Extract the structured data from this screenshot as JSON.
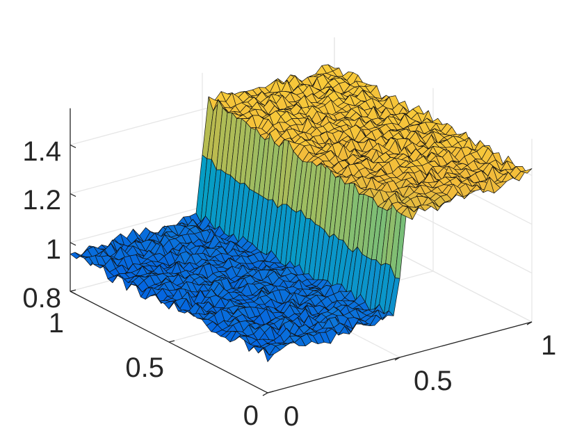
{
  "chart_data": {
    "type": "surface",
    "title": "",
    "xlabel": "",
    "ylabel": "",
    "zlabel": "",
    "xlim": [
      0,
      1
    ],
    "ylim": [
      0,
      1
    ],
    "zlim": [
      0.8,
      1.55
    ],
    "grid": true,
    "colormap": "parula",
    "x_ticks": [
      "0",
      "0.5",
      "1"
    ],
    "y_ticks": [
      "0",
      "0.5",
      "1"
    ],
    "z_ticks": [
      "0.8",
      "1",
      "1.2",
      "1.4"
    ],
    "x_tick_values": [
      0,
      0.5,
      1
    ],
    "y_tick_values": [
      0,
      0.5,
      1
    ],
    "z_tick_values": [
      0.8,
      1,
      1.2,
      1.4
    ],
    "surface": {
      "step_location_x": 0.5,
      "low_level_z": 0.97,
      "high_level_z": 1.43,
      "low_level_z_near_x0": 0.94,
      "spike_peaks_z": [
        1.3,
        1.32,
        1.34,
        1.36
      ]
    }
  }
}
